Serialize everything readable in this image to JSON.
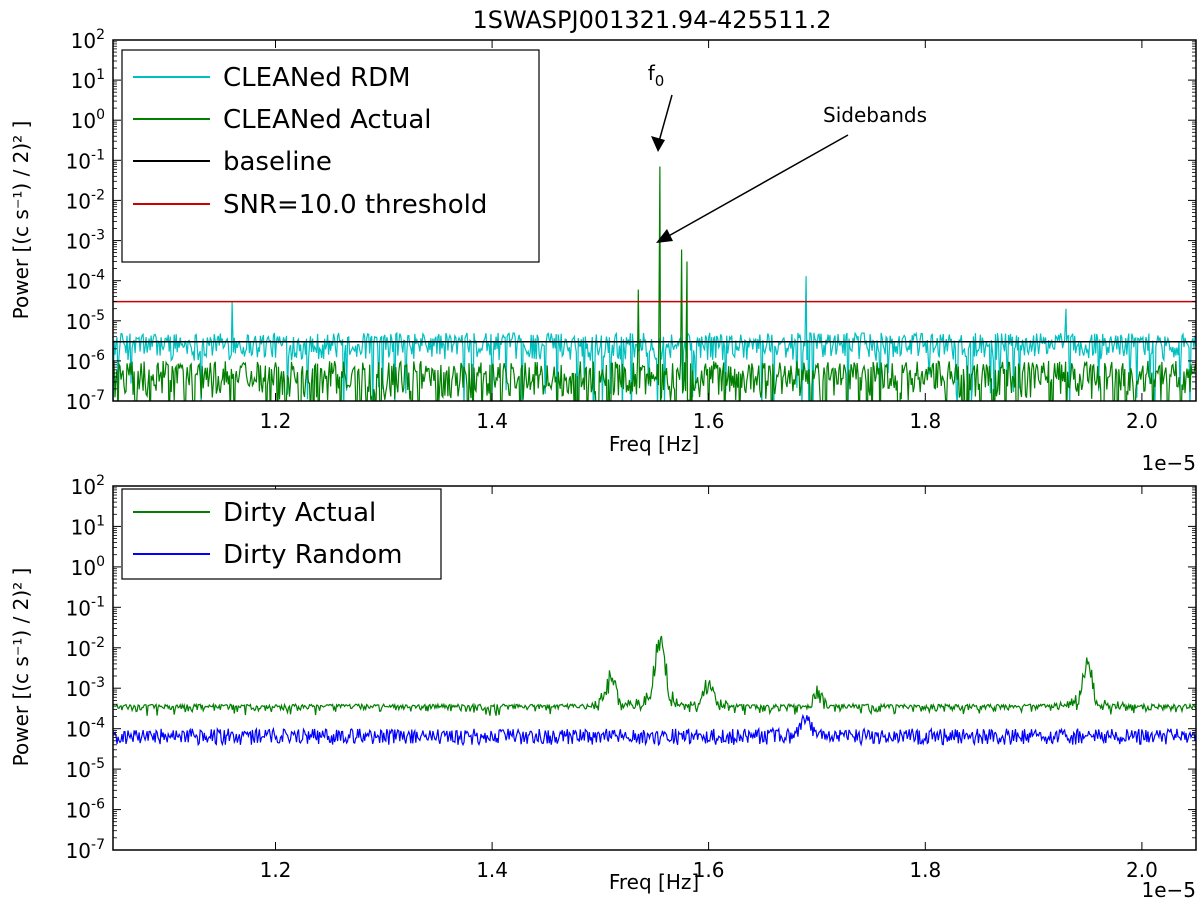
{
  "figure": {
    "title": "1SWASPJ001321.94-425511.2"
  },
  "chart_data": [
    {
      "type": "line",
      "xlabel": "Freq [Hz]",
      "ylabel": "Power [(c s⁻¹) / 2)² ]",
      "xlim": [
        1.05e-05,
        2.05e-05
      ],
      "ylim": [
        1e-07,
        100
      ],
      "yscale": "log",
      "x_offset_label": "1e−5",
      "x_ticks": [
        1.2e-05,
        1.4e-05,
        1.6e-05,
        1.8e-05,
        2e-05
      ],
      "x_tick_labels": [
        "1.2",
        "1.4",
        "1.6",
        "1.8",
        "2.0"
      ],
      "y_ticks": [
        1e-07,
        1e-06,
        1e-05,
        0.0001,
        0.001,
        0.01,
        0.1,
        1,
        10,
        100
      ],
      "y_tick_mantissa": "10",
      "y_tick_exponents": [
        "-7",
        "-6",
        "-5",
        "-4",
        "-3",
        "-2",
        "-1",
        "0",
        "1",
        "2"
      ],
      "legend_position": "top-left",
      "series": [
        {
          "name": "CLEANed RDM",
          "color": "#00bfbf",
          "band_low": 1e-06,
          "band_high": 5e-06,
          "spikes": [
            [
              1.16e-05,
              3e-05
            ],
            [
              1.69e-05,
              0.00013
            ],
            [
              1.93e-05,
              2e-05
            ]
          ]
        },
        {
          "name": "CLEANed Actual",
          "color": "#007f00",
          "band_low": 1e-07,
          "band_high": 1e-06,
          "spikes": [
            [
              1.535e-05,
              6e-05
            ],
            [
              1.555e-05,
              0.07
            ],
            [
              1.575e-05,
              0.0006
            ],
            [
              1.58e-05,
              0.0003
            ]
          ]
        },
        {
          "name": "baseline",
          "color": "#000000",
          "value": 3e-06
        },
        {
          "name": "SNR=10.0 threshold",
          "color": "#cc0000",
          "value": 3e-05
        }
      ],
      "annotations": [
        {
          "text": "f",
          "subscript": "0",
          "target_x": 1.556e-05,
          "target_y": 0.07
        },
        {
          "text": "Sidebands",
          "target_x": 1.58e-05,
          "target_y": 0.0006
        }
      ]
    },
    {
      "type": "line",
      "xlabel": "Freq [Hz]",
      "ylabel": "Power [(c s⁻¹) / 2)² ]",
      "xlim": [
        1.05e-05,
        2.05e-05
      ],
      "ylim": [
        1e-07,
        100
      ],
      "yscale": "log",
      "x_offset_label": "1e−5",
      "x_ticks": [
        1.2e-05,
        1.4e-05,
        1.6e-05,
        1.8e-05,
        2e-05
      ],
      "x_tick_labels": [
        "1.2",
        "1.4",
        "1.6",
        "1.8",
        "2.0"
      ],
      "y_ticks": [
        1e-07,
        1e-06,
        1e-05,
        0.0001,
        0.001,
        0.01,
        0.1,
        1,
        10,
        100
      ],
      "y_tick_mantissa": "10",
      "y_tick_exponents": [
        "-7",
        "-6",
        "-5",
        "-4",
        "-3",
        "-2",
        "-1",
        "0",
        "1",
        "2"
      ],
      "legend_position": "top-left",
      "series": [
        {
          "name": "Dirty Actual",
          "color": "#007f00",
          "band_low": 1e-05,
          "band_high": 0.0004,
          "peaks": [
            [
              1.51e-05,
              0.004
            ],
            [
              1.555e-05,
              0.06
            ],
            [
              1.6e-05,
              0.003
            ],
            [
              1.7e-05,
              0.0015
            ],
            [
              1.95e-05,
              0.008
            ]
          ]
        },
        {
          "name": "Dirty Random",
          "color": "#0000ff",
          "band_low": 1e-06,
          "band_high": 0.0001,
          "peaks": [
            [
              1.69e-05,
              0.0003
            ]
          ]
        }
      ]
    }
  ]
}
